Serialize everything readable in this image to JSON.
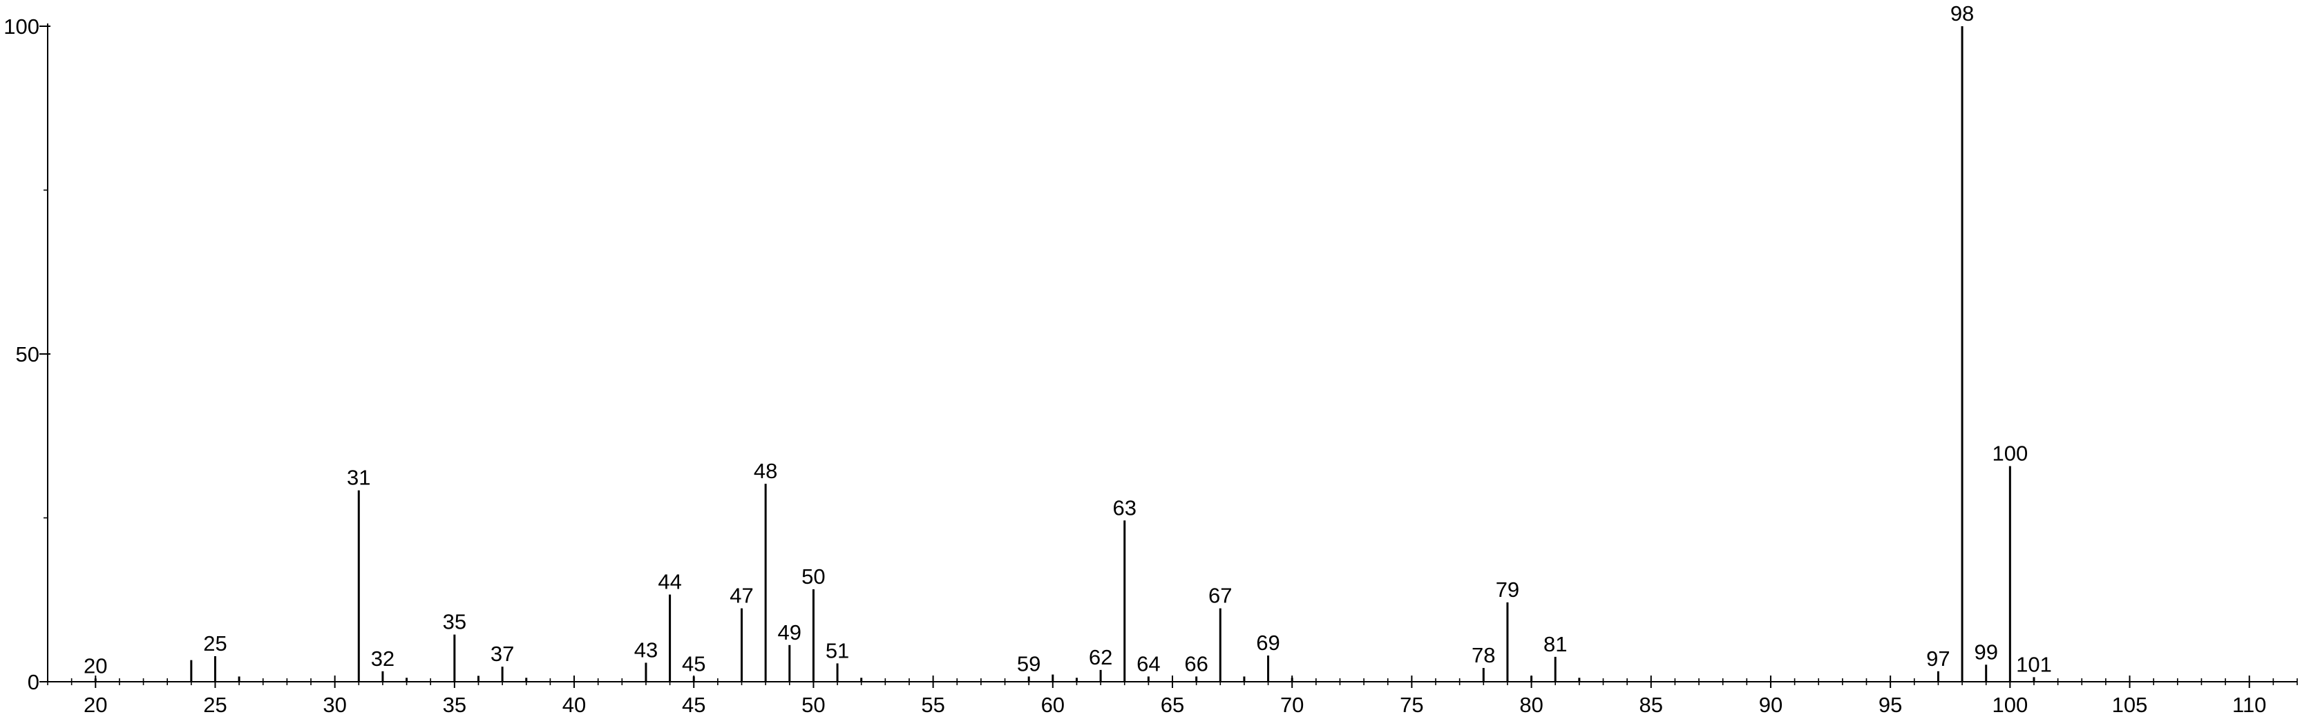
{
  "chart_data": {
    "type": "bar",
    "title": "",
    "xlabel": "",
    "ylabel": "",
    "xlim": [
      18,
      112
    ],
    "ylim": [
      0,
      100
    ],
    "grid": false,
    "legend": "none",
    "x_ticks": [
      20,
      25,
      30,
      35,
      40,
      45,
      50,
      55,
      60,
      65,
      70,
      75,
      80,
      85,
      90,
      95,
      100,
      105,
      110
    ],
    "y_ticks": [
      0,
      50,
      100
    ],
    "x_minor_step": 1,
    "y_minor_step": 25,
    "peaks": [
      {
        "x": 20,
        "y": 0.5,
        "label": "20"
      },
      {
        "x": 24,
        "y": 3.3,
        "label": ""
      },
      {
        "x": 25,
        "y": 3.9,
        "label": "25"
      },
      {
        "x": 26,
        "y": 0.8,
        "label": ""
      },
      {
        "x": 31,
        "y": 29.2,
        "label": "31"
      },
      {
        "x": 32,
        "y": 1.6,
        "label": "32"
      },
      {
        "x": 33,
        "y": 0.6,
        "label": ""
      },
      {
        "x": 35,
        "y": 7.2,
        "label": "35"
      },
      {
        "x": 36,
        "y": 0.9,
        "label": ""
      },
      {
        "x": 37,
        "y": 2.3,
        "label": "37"
      },
      {
        "x": 38,
        "y": 0.6,
        "label": ""
      },
      {
        "x": 43,
        "y": 2.9,
        "label": "43"
      },
      {
        "x": 44,
        "y": 13.3,
        "label": "44"
      },
      {
        "x": 45,
        "y": 0.8,
        "label": "45"
      },
      {
        "x": 47,
        "y": 11.2,
        "label": "47"
      },
      {
        "x": 48,
        "y": 30.2,
        "label": "48"
      },
      {
        "x": 49,
        "y": 5.6,
        "label": "49"
      },
      {
        "x": 50,
        "y": 14.1,
        "label": "50"
      },
      {
        "x": 51,
        "y": 2.8,
        "label": "51"
      },
      {
        "x": 52,
        "y": 0.6,
        "label": ""
      },
      {
        "x": 59,
        "y": 0.8,
        "label": "59"
      },
      {
        "x": 60,
        "y": 1.1,
        "label": ""
      },
      {
        "x": 61,
        "y": 0.6,
        "label": ""
      },
      {
        "x": 62,
        "y": 1.8,
        "label": "62"
      },
      {
        "x": 63,
        "y": 24.6,
        "label": "63"
      },
      {
        "x": 64,
        "y": 0.8,
        "label": "64"
      },
      {
        "x": 66,
        "y": 0.8,
        "label": "66"
      },
      {
        "x": 67,
        "y": 11.2,
        "label": "67"
      },
      {
        "x": 68,
        "y": 0.8,
        "label": ""
      },
      {
        "x": 69,
        "y": 4.0,
        "label": "69"
      },
      {
        "x": 70,
        "y": 0.6,
        "label": ""
      },
      {
        "x": 78,
        "y": 2.1,
        "label": "78"
      },
      {
        "x": 79,
        "y": 12.1,
        "label": "79"
      },
      {
        "x": 80,
        "y": 0.9,
        "label": ""
      },
      {
        "x": 81,
        "y": 3.8,
        "label": "81"
      },
      {
        "x": 82,
        "y": 0.6,
        "label": ""
      },
      {
        "x": 97,
        "y": 1.6,
        "label": "97"
      },
      {
        "x": 98,
        "y": 100,
        "label": "98"
      },
      {
        "x": 99,
        "y": 2.6,
        "label": "99"
      },
      {
        "x": 100,
        "y": 32.9,
        "label": "100"
      },
      {
        "x": 101,
        "y": 0.7,
        "label": "101"
      }
    ]
  }
}
